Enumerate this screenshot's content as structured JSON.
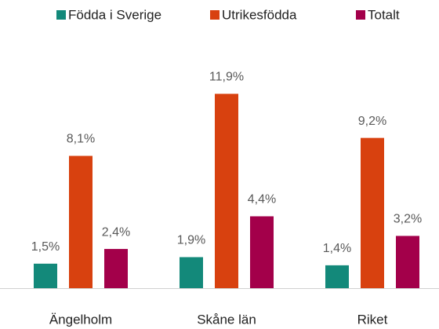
{
  "chart_data": {
    "type": "bar",
    "categories": [
      "Ängelholm",
      "Skåne län",
      "Riket"
    ],
    "series": [
      {
        "name": "Födda i Sverige",
        "color": "#13897a",
        "values": [
          1.5,
          1.9,
          1.4
        ],
        "value_labels": [
          "1,5%",
          "1,9%",
          "1,4%"
        ]
      },
      {
        "name": "Utrikesfödda",
        "color": "#d8410f",
        "values": [
          8.1,
          11.9,
          9.2
        ],
        "value_labels": [
          "8,1%",
          "11,9%",
          "9,2%"
        ]
      },
      {
        "name": "Totalt",
        "color": "#a3004a",
        "values": [
          2.4,
          4.4,
          3.2
        ],
        "value_labels": [
          "2,4%",
          "4,4%",
          "3,2%"
        ]
      }
    ],
    "legend": "top"
  }
}
